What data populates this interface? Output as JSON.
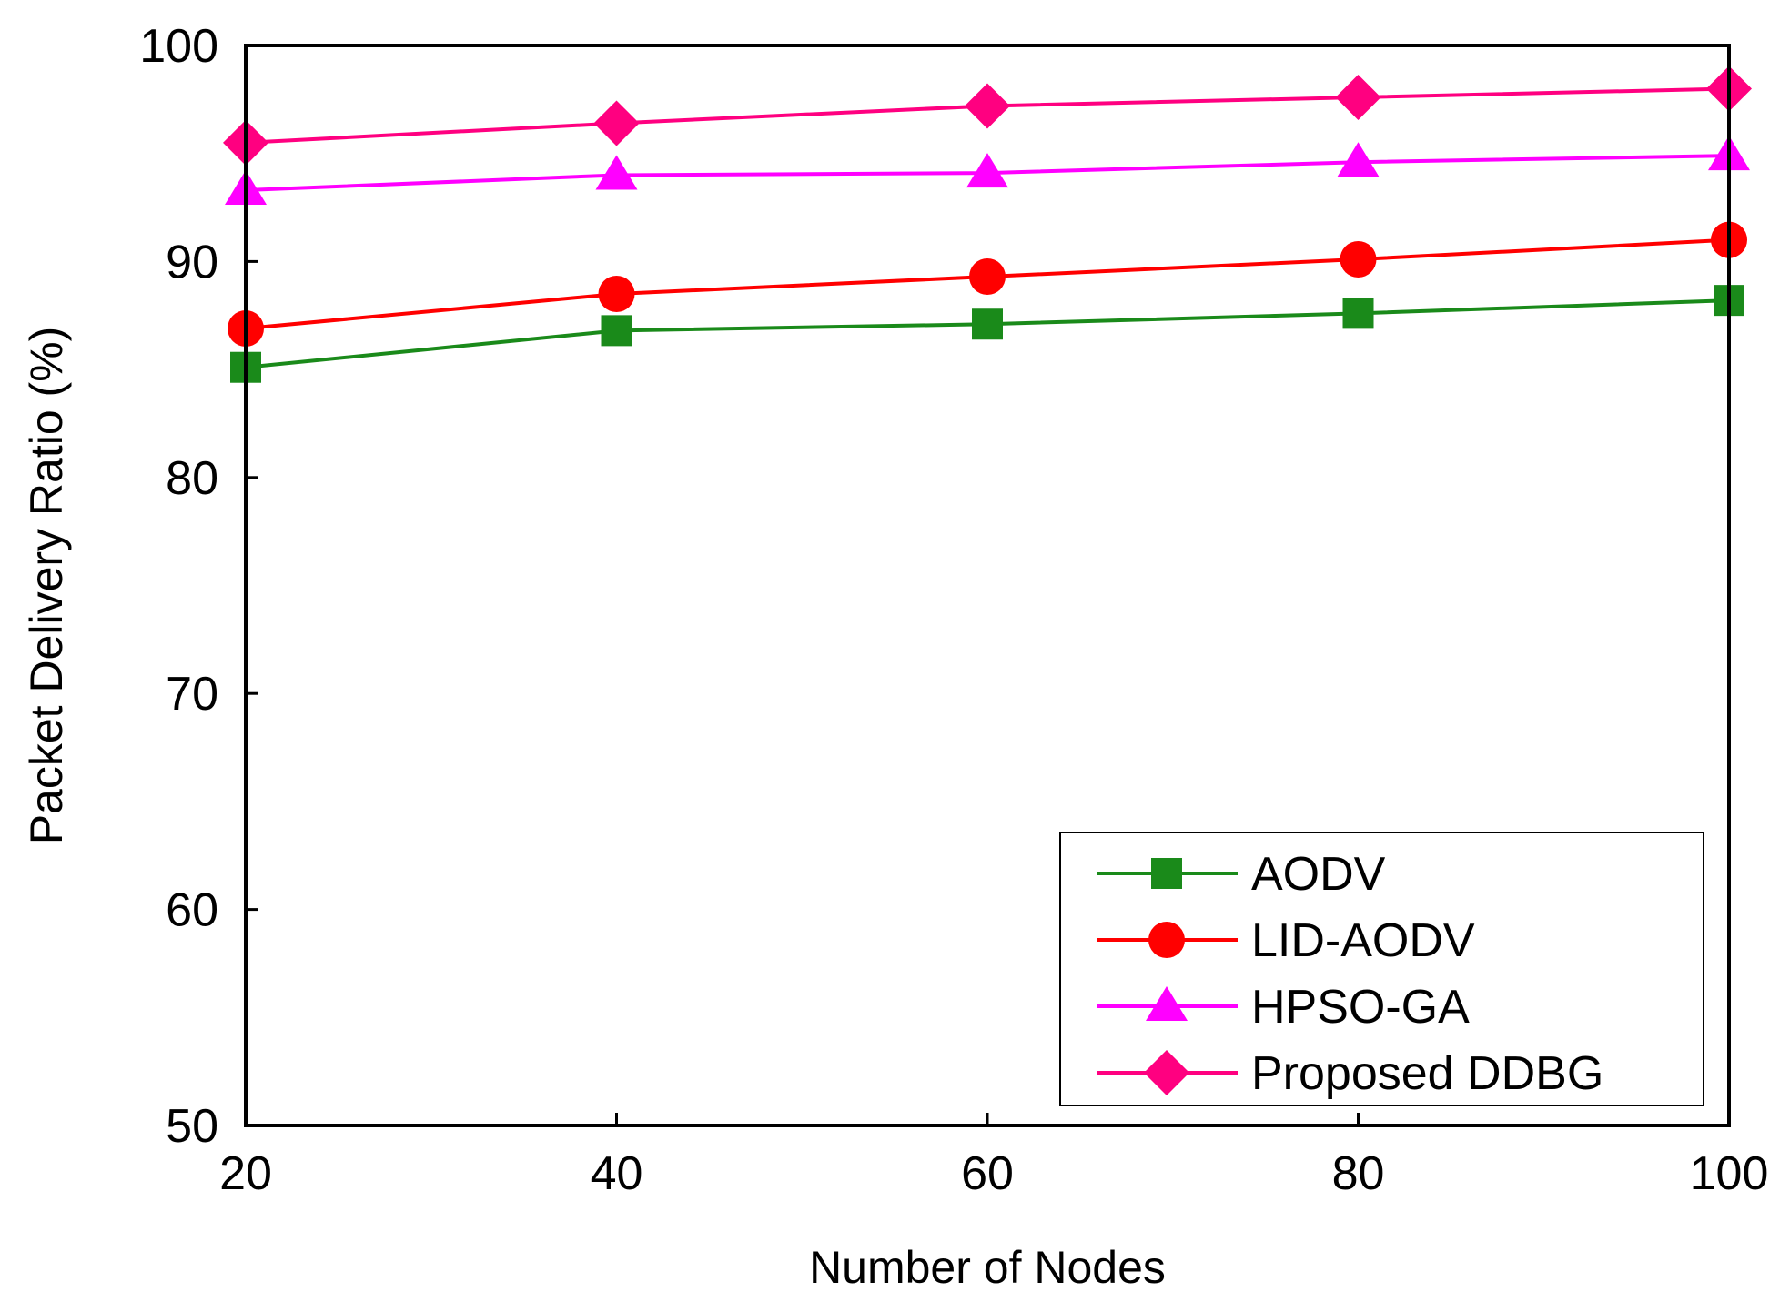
{
  "chart_data": {
    "type": "line",
    "title": "",
    "xlabel": "Number of Nodes",
    "ylabel": "Packet Delivery Ratio (%)",
    "x": [
      20,
      40,
      60,
      80,
      100
    ],
    "xlim": [
      20,
      100
    ],
    "ylim": [
      50,
      100
    ],
    "xticks": [
      20,
      40,
      60,
      80,
      100
    ],
    "yticks": [
      50,
      60,
      70,
      80,
      90,
      100
    ],
    "grid": false,
    "legend_position": "bottom-right",
    "series": [
      {
        "name": "AODV",
        "values": [
          85.1,
          86.8,
          87.1,
          87.6,
          88.2
        ],
        "color": "#1a8a1a",
        "marker": "square"
      },
      {
        "name": "LID-AODV",
        "values": [
          86.9,
          88.5,
          89.3,
          90.1,
          91.0
        ],
        "color": "#ff0000",
        "marker": "circle"
      },
      {
        "name": "HPSO-GA",
        "values": [
          93.3,
          94.0,
          94.1,
          94.6,
          94.9
        ],
        "color": "#ff00ff",
        "marker": "triangle"
      },
      {
        "name": "Proposed DDBG",
        "values": [
          95.5,
          96.4,
          97.2,
          97.6,
          98.0
        ],
        "color": "#ff0080",
        "marker": "diamond"
      }
    ]
  }
}
